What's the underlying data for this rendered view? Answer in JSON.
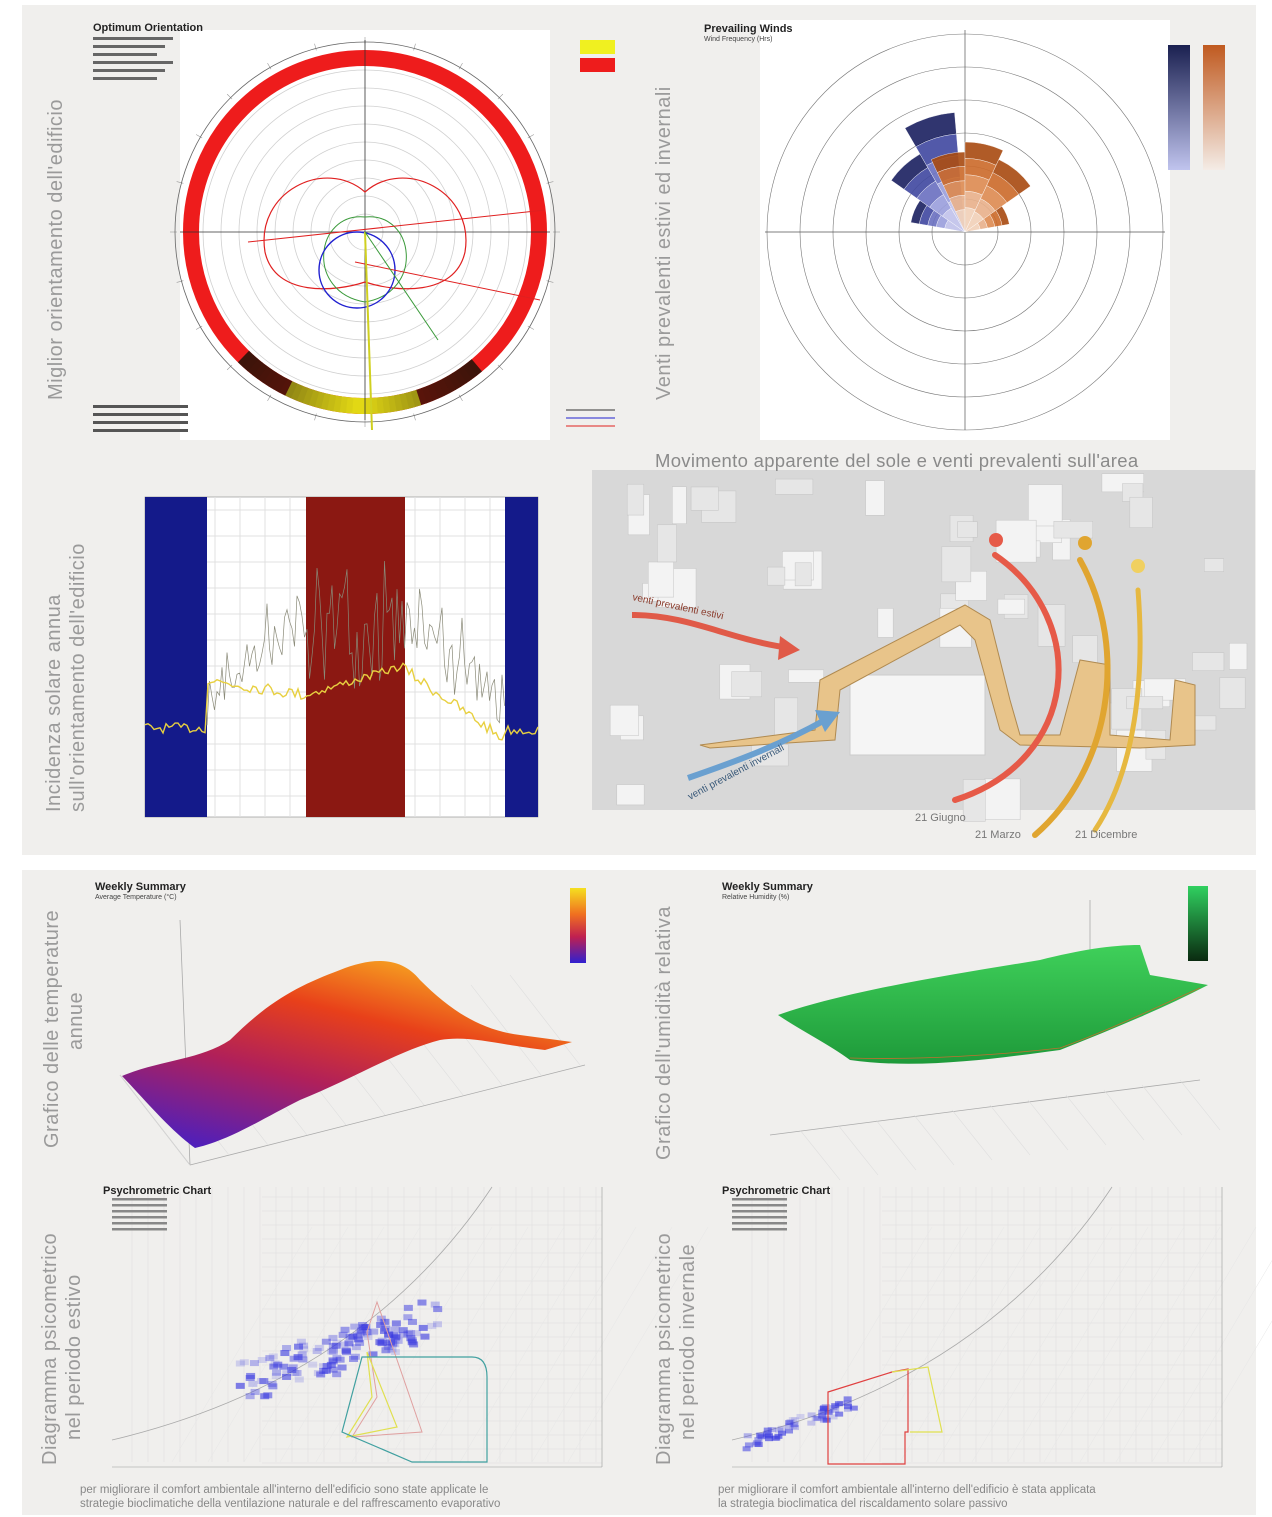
{
  "poster": {
    "orientation": {
      "side_label": "Miglior orientamento dell'edificio",
      "title": "Optimum Orientation"
    },
    "winds": {
      "side_label": "Venti prevalenti estivi ed invernali",
      "title": "Prevailing Winds",
      "subtitle": "Wind Frequency (Hrs)"
    },
    "solar": {
      "side_label": [
        "Incidenza solare annua",
        "sull'orientamento dell'edificio"
      ]
    },
    "sun_path": {
      "title": "Movimento apparente del sole e venti prevalenti sull'area",
      "wind_summer": "venti prevalenti estivi",
      "wind_winter": "venti prevalenti invernali",
      "dates": [
        "21 Giugno",
        "21 Marzo",
        "21 Dicembre"
      ]
    },
    "temperature": {
      "side_label": [
        "Grafico delle temperature",
        "annue"
      ],
      "title": "Weekly Summary",
      "subtitle": "Average Temperature (°C)"
    },
    "humidity": {
      "side_label": "Grafico dell'umidità relativa",
      "title": "Weekly Summary",
      "subtitle": "Relative Humidity (%)"
    },
    "psychro_summer": {
      "side_label": [
        "Diagramma psicometrico",
        "nel periodo estivo"
      ],
      "title": "Psychrometric Chart",
      "caption": [
        "per migliorare il comfort ambientale all'interno dell'edificio sono state applicate le",
        "strategie bioclimatiche della ventilazione naturale e del raffrescamento evaporativo"
      ]
    },
    "psychro_winter": {
      "side_label": [
        "Diagramma psicometrico",
        "nel periodo invernale"
      ],
      "title": "Psychrometric Chart",
      "caption": [
        "per migliorare il comfort ambientale all'interno dell'edificio è stata applicata",
        "la strategia bioclimatica del riscaldamento solare passivo"
      ]
    }
  }
}
